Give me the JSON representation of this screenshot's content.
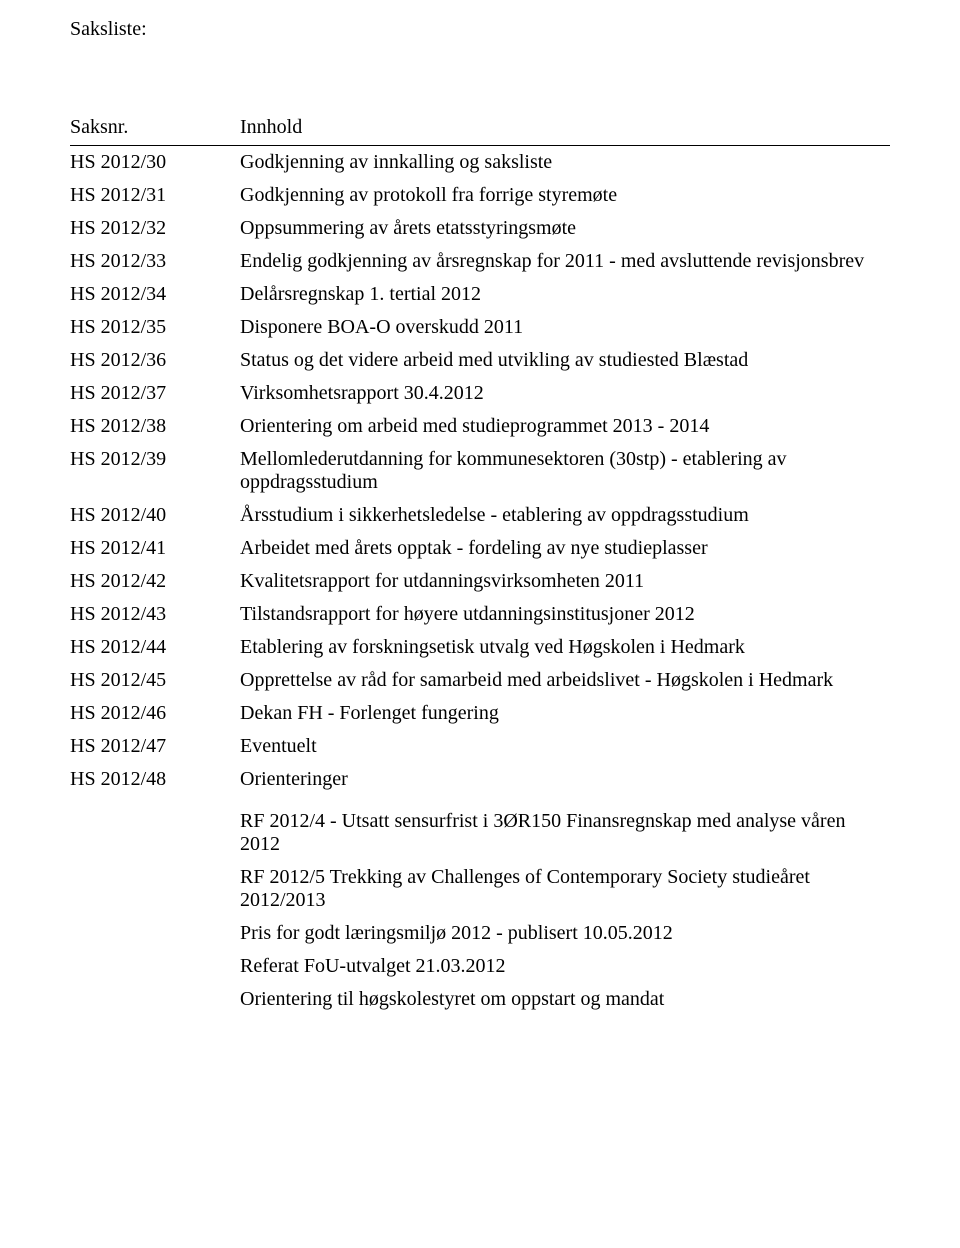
{
  "heading": "Saksliste:",
  "header": {
    "col1": "Saksnr.",
    "col2": "Innhold"
  },
  "rows": [
    {
      "nr": "HS 2012/30",
      "text": "Godkjenning av innkalling og saksliste"
    },
    {
      "nr": "HS 2012/31",
      "text": "Godkjenning av protokoll fra forrige styremøte"
    },
    {
      "nr": "HS 2012/32",
      "text": "Oppsummering av årets etatsstyringsmøte"
    },
    {
      "nr": "HS 2012/33",
      "text": "Endelig godkjenning av årsregnskap for 2011 - med avsluttende revisjonsbrev"
    },
    {
      "nr": "HS 2012/34",
      "text": "Delårsregnskap 1. tertial 2012"
    },
    {
      "nr": "HS 2012/35",
      "text": "Disponere BOA-O overskudd 2011"
    },
    {
      "nr": "HS 2012/36",
      "text": "Status og det videre arbeid med utvikling av studiested Blæstad"
    },
    {
      "nr": "HS 2012/37",
      "text": "Virksomhetsrapport 30.4.2012"
    },
    {
      "nr": "HS 2012/38",
      "text": "Orientering om arbeid med studieprogrammet 2013 - 2014"
    },
    {
      "nr": "HS 2012/39",
      "text": "Mellomlederutdanning for kommunesektoren (30stp) - etablering av oppdragsstudium"
    },
    {
      "nr": "HS 2012/40",
      "text": "Årsstudium i sikkerhetsledelse - etablering av oppdragsstudium"
    },
    {
      "nr": "HS 2012/41",
      "text": "Arbeidet med årets opptak - fordeling av nye studieplasser"
    },
    {
      "nr": "HS 2012/42",
      "text": "Kvalitetsrapport for utdanningsvirksomheten 2011"
    },
    {
      "nr": "HS 2012/43",
      "text": "Tilstandsrapport for høyere utdanningsinstitusjoner 2012"
    },
    {
      "nr": "HS 2012/44",
      "text": "Etablering av forskningsetisk utvalg ved Høgskolen i Hedmark"
    },
    {
      "nr": "HS 2012/45",
      "text": "Opprettelse av råd for samarbeid med arbeidslivet - Høgskolen i Hedmark"
    },
    {
      "nr": "HS 2012/46",
      "text": "Dekan FH - Forlenget fungering"
    },
    {
      "nr": "HS 2012/47",
      "text": "Eventuelt"
    },
    {
      "nr": "HS 2012/48",
      "text": "Orienteringer"
    }
  ],
  "extras": [
    "RF 2012/4 - Utsatt sensurfrist i 3ØR150 Finansregnskap med analyse våren 2012",
    "RF 2012/5 Trekking av Challenges of Contemporary Society studieåret 2012/2013",
    "Pris for godt læringsmiljø 2012 - publisert 10.05.2012",
    "Referat FoU-utvalget 21.03.2012",
    "Orientering til høgskolestyret om oppstart og mandat"
  ]
}
